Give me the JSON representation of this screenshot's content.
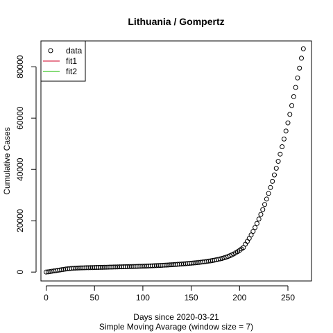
{
  "chart_data": {
    "type": "scatter",
    "title": "Lithuania / Gompertz",
    "xlabel": "Days since 2020-03-21",
    "xlabel2": "Simple Moving Avarage (window size = 7)",
    "ylabel": "Cumulative Cases",
    "xlim": [
      -5.4,
      274.4
    ],
    "ylim": [
      -3465,
      90065
    ],
    "x_ticks": [
      0,
      50,
      100,
      150,
      200,
      250
    ],
    "x_tick_labels": [
      "0",
      "50",
      "100",
      "150",
      "200",
      "250"
    ],
    "y_ticks": [
      0,
      20000,
      40000,
      60000,
      80000
    ],
    "y_tick_labels": [
      "0",
      "20000",
      "40000",
      "60000",
      "80000"
    ],
    "grid": false,
    "legend": {
      "position": "top-left",
      "entries": [
        {
          "label": "data",
          "kind": "point",
          "color": "#000000"
        },
        {
          "label": "fit1",
          "kind": "line",
          "color": "#DF536B"
        },
        {
          "label": "fit2",
          "kind": "line",
          "color": "#61D04F"
        }
      ]
    },
    "series": [
      {
        "name": "data",
        "marker": "open-circle",
        "color": "#000000",
        "x_start": 0,
        "x_step": 2,
        "values": [
          0,
          80,
          200,
          320,
          440,
          560,
          680,
          800,
          920,
          1040,
          1150,
          1250,
          1340,
          1420,
          1480,
          1530,
          1570,
          1600,
          1630,
          1650,
          1670,
          1690,
          1710,
          1730,
          1750,
          1770,
          1790,
          1810,
          1830,
          1850,
          1870,
          1890,
          1910,
          1930,
          1950,
          1970,
          1990,
          2010,
          2030,
          2050,
          2070,
          2090,
          2110,
          2130,
          2150,
          2170,
          2190,
          2210,
          2230,
          2260,
          2290,
          2320,
          2350,
          2380,
          2410,
          2440,
          2470,
          2510,
          2550,
          2590,
          2630,
          2670,
          2710,
          2760,
          2810,
          2860,
          2910,
          2960,
          3010,
          3070,
          3130,
          3190,
          3250,
          3310,
          3380,
          3450,
          3520,
          3600,
          3680,
          3760,
          3850,
          3940,
          4040,
          4140,
          4260,
          4380,
          4510,
          4650,
          4800,
          4960,
          5140,
          5330,
          5550,
          5790,
          6060,
          6360,
          6700,
          7080,
          7500,
          7960,
          8460,
          9000,
          9580,
          10850,
          11950,
          13150,
          14450,
          15850,
          17350,
          18950,
          20650,
          22450,
          24350,
          26350,
          28450,
          30650,
          32950,
          35350,
          37850,
          40450,
          43150,
          45950,
          48850,
          51850,
          54950,
          58150,
          61450,
          64850,
          68350,
          71950,
          75650,
          79450,
          83350,
          87000
        ]
      }
    ]
  }
}
